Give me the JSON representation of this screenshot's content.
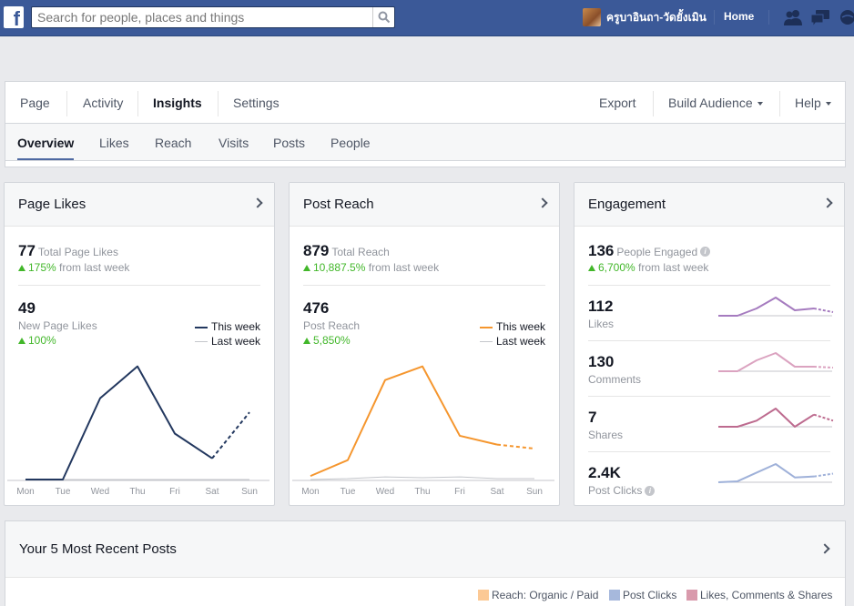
{
  "topbar": {
    "logo": "f",
    "search_placeholder": "Search for people, places and things",
    "user_name": "ครูบาอินถา-วัดยั้งเมิน",
    "home": "Home"
  },
  "page_nav": {
    "items": [
      "Page",
      "Activity",
      "Insights",
      "Settings"
    ],
    "right": [
      "Export",
      "Build Audience",
      "Help"
    ]
  },
  "sub_nav": [
    "Overview",
    "Likes",
    "Reach",
    "Visits",
    "Posts",
    "People"
  ],
  "days": [
    "Mon",
    "Tue",
    "Wed",
    "Thu",
    "Fri",
    "Sat",
    "Sun"
  ],
  "page_likes": {
    "title": "Page Likes",
    "total": "77",
    "total_label": "Total Page Likes",
    "total_trend": "175%",
    "total_trend_rest": "from last week",
    "new": "49",
    "new_label": "New Page Likes",
    "new_trend": "100%",
    "legend_this": "This week",
    "legend_last": "Last week"
  },
  "post_reach": {
    "title": "Post Reach",
    "total": "879",
    "total_label": "Total Reach",
    "total_trend": "10,887.5%",
    "total_trend_rest": "from last week",
    "new": "476",
    "new_label": "Post Reach",
    "new_trend": "5,850%",
    "legend_this": "This week",
    "legend_last": "Last week"
  },
  "engagement": {
    "title": "Engagement",
    "total": "136",
    "total_label": "People Engaged",
    "total_trend": "6,700%",
    "total_trend_rest": "from last week",
    "rows": [
      {
        "value": "112",
        "label": "Likes"
      },
      {
        "value": "130",
        "label": "Comments"
      },
      {
        "value": "7",
        "label": "Shares"
      },
      {
        "value": "2.4K",
        "label": "Post Clicks"
      }
    ]
  },
  "recent_posts": {
    "title": "Your 5 Most Recent Posts",
    "legend": [
      "Reach: Organic / Paid",
      "Post Clicks",
      "Likes, Comments & Shares"
    ]
  },
  "colors": {
    "brand": "#3b5998",
    "likes_line": "#23385f",
    "reach_line": "#f5962e",
    "positive": "#42b72a",
    "eng_likes": "#a57bbf",
    "eng_comments": "#dba3c0",
    "eng_shares": "#bd6b8f",
    "eng_clicks": "#9fb1d9"
  },
  "chart_data": [
    {
      "type": "line",
      "categories": [
        "Mon",
        "Tue",
        "Wed",
        "Thu",
        "Fri",
        "Sat",
        "Sun"
      ],
      "series": [
        {
          "name": "This week",
          "values": [
            0,
            0,
            23,
            32,
            13,
            6,
            19
          ]
        },
        {
          "name": "Last week",
          "values": [
            0,
            0,
            0,
            0,
            0,
            0,
            0
          ]
        }
      ],
      "ylim": [
        0,
        35
      ]
    },
    {
      "type": "line",
      "categories": [
        "Mon",
        "Tue",
        "Wed",
        "Thu",
        "Fri",
        "Sat",
        "Sun"
      ],
      "series": [
        {
          "name": "This week",
          "values": [
            8,
            44,
            225,
            256,
            99,
            79,
            70
          ]
        },
        {
          "name": "Last week",
          "values": [
            0,
            2,
            6,
            4,
            6,
            2,
            2
          ]
        }
      ],
      "ylim": [
        0,
        280
      ]
    },
    {
      "type": "line",
      "title": "Likes",
      "categories": [
        "Mon",
        "Tue",
        "Wed",
        "Thu",
        "Fri",
        "Sat",
        "Sun"
      ],
      "values": [
        0,
        0,
        8,
        20,
        6,
        8,
        4
      ]
    },
    {
      "type": "line",
      "title": "Comments",
      "categories": [
        "Mon",
        "Tue",
        "Wed",
        "Thu",
        "Fri",
        "Sat",
        "Sun"
      ],
      "values": [
        0,
        0,
        12,
        20,
        5,
        5,
        4
      ]
    },
    {
      "type": "line",
      "title": "Shares",
      "categories": [
        "Mon",
        "Tue",
        "Wed",
        "Thu",
        "Fri",
        "Sat",
        "Sun"
      ],
      "values": [
        0,
        0,
        2,
        6,
        0,
        4,
        2
      ]
    },
    {
      "type": "line",
      "title": "Post Clicks",
      "categories": [
        "Mon",
        "Tue",
        "Wed",
        "Thu",
        "Fri",
        "Sat",
        "Sun"
      ],
      "values": [
        0,
        1,
        10,
        19,
        5,
        6,
        9
      ]
    }
  ]
}
